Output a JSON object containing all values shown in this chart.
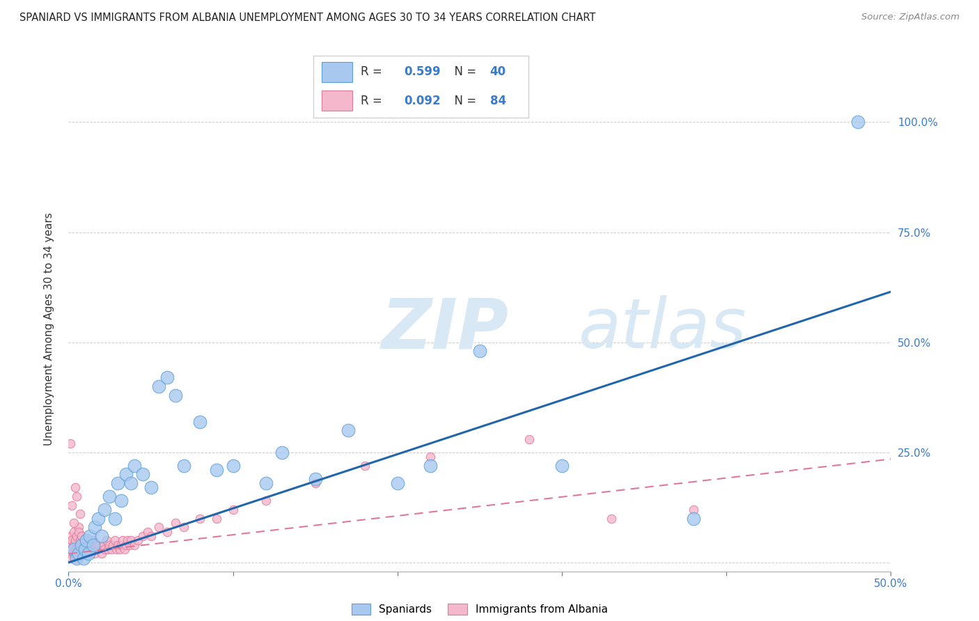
{
  "title": "SPANIARD VS IMMIGRANTS FROM ALBANIA UNEMPLOYMENT AMONG AGES 30 TO 34 YEARS CORRELATION CHART",
  "source": "Source: ZipAtlas.com",
  "ylabel": "Unemployment Among Ages 30 to 34 years",
  "xlim": [
    0.0,
    0.5
  ],
  "ylim": [
    -0.02,
    1.08
  ],
  "xtick_vals": [
    0.0,
    0.1,
    0.2,
    0.3,
    0.4,
    0.5
  ],
  "xticklabels": [
    "0.0%",
    "",
    "",
    "",
    "",
    "50.0%"
  ],
  "ytick_vals": [
    0.0,
    0.25,
    0.5,
    0.75,
    1.0
  ],
  "yticklabels": [
    "",
    "25.0%",
    "50.0%",
    "75.0%",
    "100.0%"
  ],
  "spaniards_x": [
    0.003,
    0.005,
    0.006,
    0.008,
    0.009,
    0.01,
    0.011,
    0.012,
    0.013,
    0.015,
    0.016,
    0.018,
    0.02,
    0.022,
    0.025,
    0.028,
    0.03,
    0.032,
    0.035,
    0.038,
    0.04,
    0.045,
    0.05,
    0.055,
    0.06,
    0.065,
    0.07,
    0.08,
    0.09,
    0.1,
    0.12,
    0.13,
    0.15,
    0.17,
    0.2,
    0.22,
    0.25,
    0.3,
    0.38,
    0.48
  ],
  "spaniards_y": [
    0.03,
    0.01,
    0.02,
    0.04,
    0.01,
    0.03,
    0.05,
    0.02,
    0.06,
    0.04,
    0.08,
    0.1,
    0.06,
    0.12,
    0.15,
    0.1,
    0.18,
    0.14,
    0.2,
    0.18,
    0.22,
    0.2,
    0.17,
    0.4,
    0.42,
    0.38,
    0.22,
    0.32,
    0.21,
    0.22,
    0.18,
    0.25,
    0.19,
    0.3,
    0.18,
    0.22,
    0.48,
    0.22,
    0.1,
    1.0
  ],
  "albania_x": [
    0.001,
    0.001,
    0.001,
    0.002,
    0.002,
    0.002,
    0.003,
    0.003,
    0.003,
    0.004,
    0.004,
    0.005,
    0.005,
    0.005,
    0.006,
    0.006,
    0.006,
    0.007,
    0.007,
    0.008,
    0.008,
    0.008,
    0.009,
    0.009,
    0.01,
    0.01,
    0.011,
    0.011,
    0.012,
    0.012,
    0.013,
    0.014,
    0.015,
    0.015,
    0.016,
    0.017,
    0.018,
    0.019,
    0.02,
    0.021,
    0.022,
    0.023,
    0.024,
    0.025,
    0.026,
    0.027,
    0.028,
    0.029,
    0.03,
    0.031,
    0.032,
    0.033,
    0.034,
    0.035,
    0.036,
    0.037,
    0.038,
    0.04,
    0.042,
    0.045,
    0.048,
    0.05,
    0.055,
    0.06,
    0.065,
    0.07,
    0.08,
    0.09,
    0.1,
    0.12,
    0.15,
    0.18,
    0.22,
    0.28,
    0.33,
    0.38,
    0.001,
    0.002,
    0.003,
    0.004,
    0.005,
    0.006,
    0.007,
    0.008
  ],
  "albania_y": [
    0.02,
    0.04,
    0.06,
    0.01,
    0.03,
    0.05,
    0.02,
    0.04,
    0.07,
    0.03,
    0.05,
    0.01,
    0.03,
    0.06,
    0.02,
    0.04,
    0.08,
    0.03,
    0.05,
    0.02,
    0.04,
    0.06,
    0.02,
    0.04,
    0.03,
    0.05,
    0.02,
    0.04,
    0.03,
    0.05,
    0.02,
    0.04,
    0.03,
    0.05,
    0.02,
    0.04,
    0.03,
    0.04,
    0.02,
    0.04,
    0.03,
    0.05,
    0.03,
    0.04,
    0.03,
    0.04,
    0.05,
    0.03,
    0.04,
    0.03,
    0.04,
    0.05,
    0.03,
    0.04,
    0.05,
    0.04,
    0.05,
    0.04,
    0.05,
    0.06,
    0.07,
    0.06,
    0.08,
    0.07,
    0.09,
    0.08,
    0.1,
    0.1,
    0.12,
    0.14,
    0.18,
    0.22,
    0.24,
    0.28,
    0.1,
    0.12,
    0.27,
    0.13,
    0.09,
    0.17,
    0.15,
    0.07,
    0.11,
    0.06
  ],
  "spaniards_color": "#a8c8f0",
  "spaniards_edge": "#5a9fd4",
  "albania_color": "#f4b8cc",
  "albania_edge": "#e07898",
  "spaniards_R": 0.599,
  "spaniards_N": 40,
  "albania_R": 0.092,
  "albania_N": 84,
  "trend_blue_x0": 0.0,
  "trend_blue_y0": 0.0,
  "trend_blue_x1": 0.5,
  "trend_blue_y1": 0.615,
  "trend_pink_x0": 0.0,
  "trend_pink_y0": 0.02,
  "trend_pink_x1": 0.5,
  "trend_pink_y1": 0.235,
  "trend_blue_color": "#2166ac",
  "trend_pink_color": "#e07898",
  "watermark_zip": "ZIP",
  "watermark_atlas": "atlas",
  "watermark_color": "#d8e8f5",
  "background_color": "#ffffff",
  "grid_color": "#cccccc",
  "legend_R_color": "#333333",
  "legend_N_color": "#3a7cc9",
  "legend_val_color": "#3a7cc9"
}
